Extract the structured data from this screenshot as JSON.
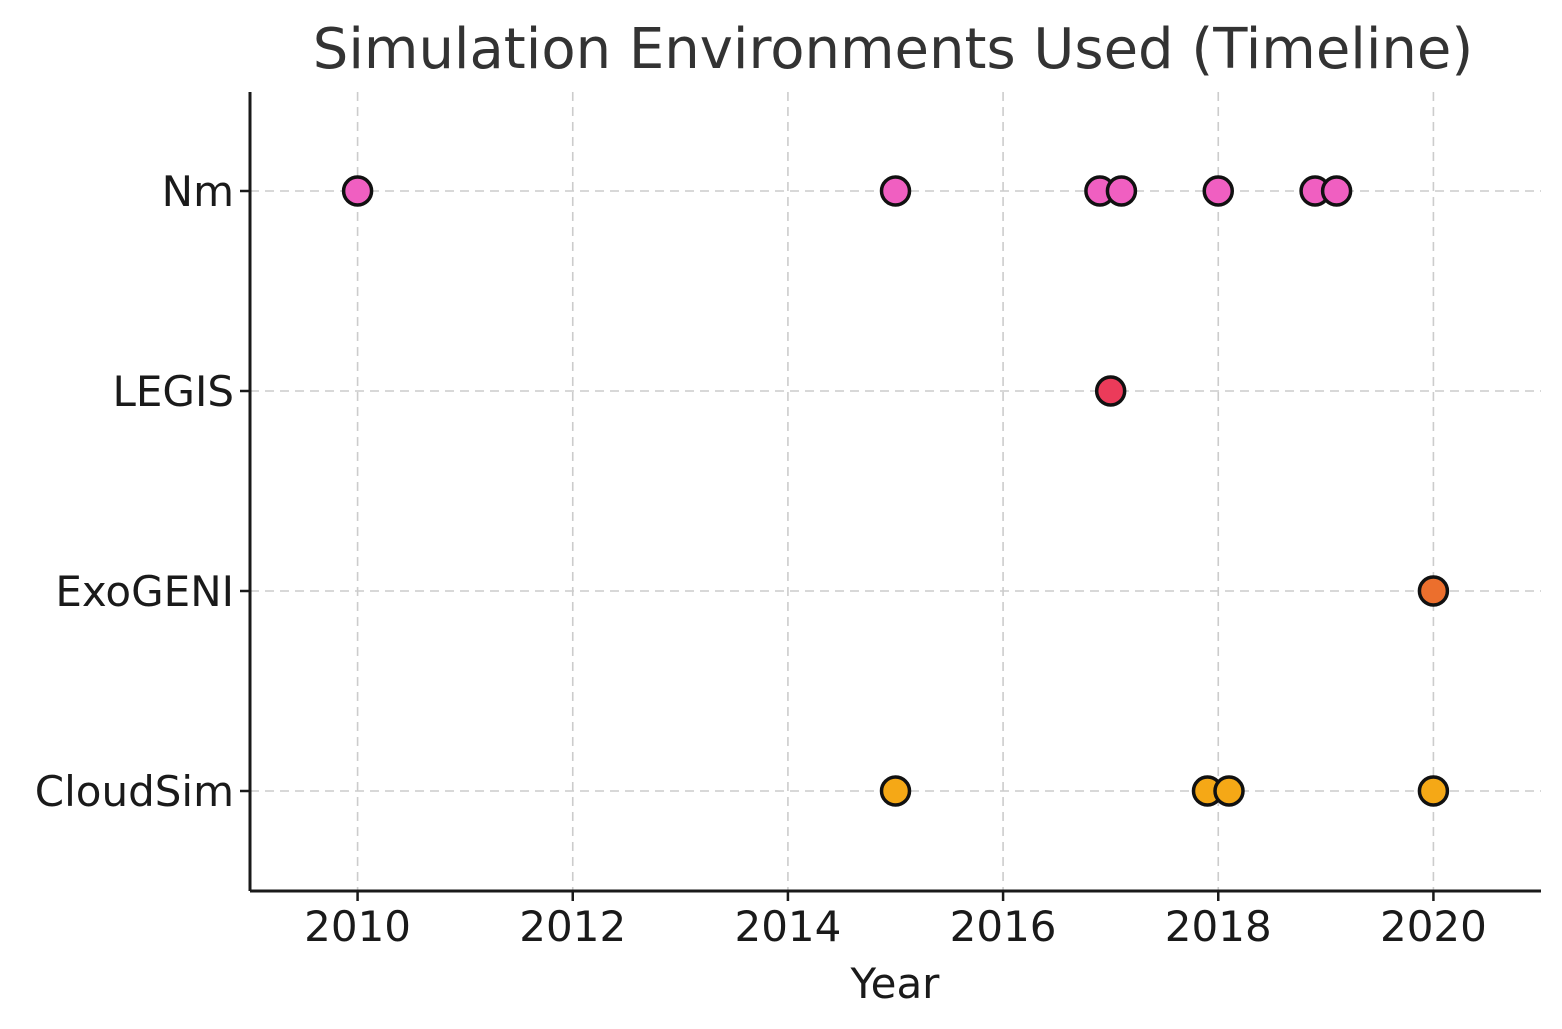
{
  "chart_data": {
    "type": "scatter",
    "title": "Simulation Environments Used (Timeline)",
    "xlabel": "Year",
    "ylabel": "",
    "xlim": [
      2009,
      2021
    ],
    "xticks": [
      2010,
      2012,
      2014,
      2016,
      2018,
      2020
    ],
    "categories": [
      "CloudSim",
      "ExoGENI",
      "LEGIS",
      "Nm"
    ],
    "grid": true,
    "series": [
      {
        "category": "Nm",
        "color": "#f05fc1",
        "x": [
          2010,
          2015,
          2016.9,
          2017.1,
          2018,
          2018.9,
          2019.1
        ]
      },
      {
        "category": "LEGIS",
        "color": "#eb3b5a",
        "x": [
          2017
        ]
      },
      {
        "category": "ExoGENI",
        "color": "#ec6f2d",
        "x": [
          2020
        ]
      },
      {
        "category": "CloudSim",
        "color": "#f5a816",
        "x": [
          2015,
          2017.9,
          2018.1,
          2020
        ]
      }
    ]
  }
}
